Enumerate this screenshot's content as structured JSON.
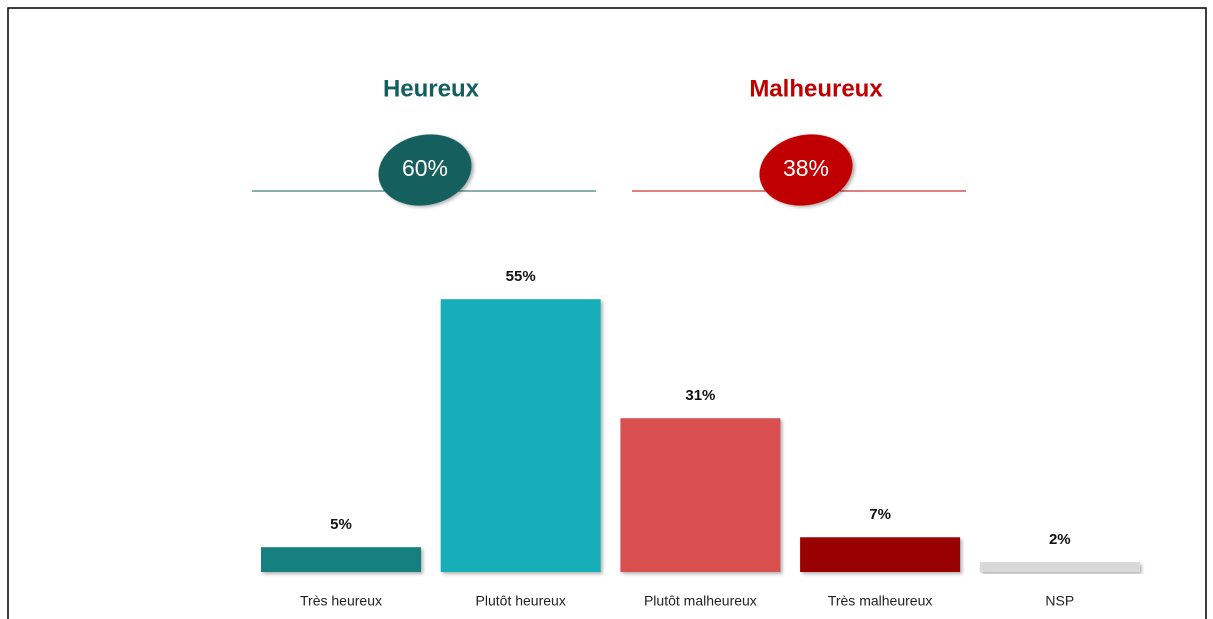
{
  "chart_data": {
    "type": "bar",
    "categories": [
      "Très heureux",
      "Plutôt heureux",
      "Plutôt malheureux",
      "Très malheureux",
      "NSP"
    ],
    "values": [
      5,
      55,
      31,
      7,
      2
    ],
    "value_labels": [
      "5%",
      "55%",
      "31%",
      "7%",
      "2%"
    ],
    "colors": [
      "#138080",
      "#13aeb8",
      "#d95050",
      "#990000",
      "#d9d9d9"
    ],
    "summary": [
      {
        "name": "Heureux",
        "value": 60,
        "value_label": "60%",
        "color": "#135e5e"
      },
      {
        "name": "Malheureux",
        "value": 38,
        "value_label": "38%",
        "color": "#c00000"
      }
    ]
  }
}
